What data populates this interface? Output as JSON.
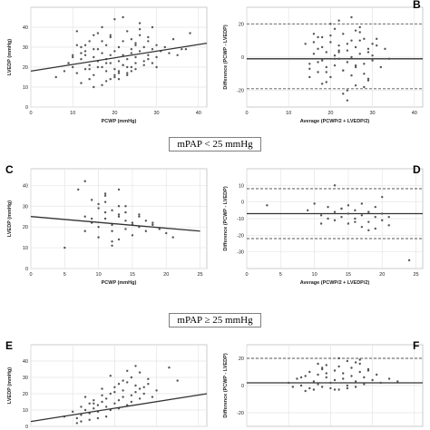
{
  "figure": {
    "section_labels": [
      "mPAP < 25 mmHg",
      "mPAP ≥ 25 mmHg"
    ],
    "panel_letters": [
      "A",
      "B",
      "C",
      "D",
      "E",
      "F"
    ]
  },
  "chart_data": [
    {
      "id": "A",
      "type": "scatter",
      "title": "",
      "xlabel": "PCWP (mmHg)",
      "ylabel": "LVEDP (mmHg)",
      "xlim": [
        0,
        42
      ],
      "ylim": [
        0,
        50
      ],
      "xticks": [
        "0",
        "10",
        "20",
        "30",
        "40"
      ],
      "yticks": [
        "0",
        "10",
        "20",
        "30",
        "40"
      ],
      "fit_line": {
        "x": [
          0,
          42
        ],
        "y": [
          18,
          32
        ]
      },
      "x": [
        6,
        8,
        9,
        10,
        10,
        11,
        12,
        12,
        13,
        13,
        14,
        14,
        15,
        15,
        15,
        16,
        16,
        17,
        17,
        17,
        18,
        18,
        18,
        19,
        19,
        19,
        20,
        20,
        20,
        21,
        21,
        21,
        22,
        22,
        22,
        23,
        23,
        23,
        24,
        24,
        24,
        25,
        25,
        25,
        26,
        26,
        27,
        27,
        28,
        28,
        29,
        29,
        30,
        30,
        31,
        32,
        33,
        34,
        35,
        36,
        12,
        14,
        16,
        18,
        20,
        22,
        24,
        26,
        28,
        30,
        11,
        13,
        15,
        17,
        19,
        21,
        23,
        25,
        27,
        29,
        10,
        12,
        14,
        16,
        18,
        20,
        22,
        24,
        26,
        28,
        15,
        17,
        19,
        21,
        23,
        25,
        9,
        11,
        13,
        38,
        37
      ],
      "y": [
        15,
        18,
        22,
        20,
        26,
        17,
        24,
        30,
        19,
        28,
        21,
        33,
        16,
        25,
        36,
        23,
        29,
        20,
        27,
        40,
        18,
        24,
        31,
        22,
        26,
        35,
        19,
        28,
        44,
        23,
        30,
        17,
        26,
        33,
        21,
        24,
        38,
        20,
        29,
        27,
        34,
        22,
        31,
        25,
        28,
        36,
        23,
        30,
        26,
        33,
        29,
        22,
        31,
        25,
        28,
        30,
        27,
        34,
        26,
        29,
        12,
        14,
        20,
        13,
        16,
        21,
        18,
        42,
        24,
        20,
        38,
        31,
        29,
        33,
        36,
        14,
        17,
        32,
        21,
        40,
        25,
        27,
        19,
        37,
        22,
        15,
        45,
        20,
        39,
        35,
        10,
        11,
        14,
        18,
        16,
        19,
        22,
        31,
        26,
        37,
        29
      ],
      "grid": true
    },
    {
      "id": "B",
      "type": "scatter",
      "title": "",
      "xlabel": "Average (PCWP/2 + LVEDP/2)",
      "ylabel": "Difference (PCWP - LVEDP)",
      "xlim": [
        0,
        42
      ],
      "ylim": [
        -30,
        30
      ],
      "xticks": [
        "0",
        "10",
        "20",
        "30",
        "40"
      ],
      "yticks": [
        "-20",
        "0",
        "20"
      ],
      "reference_lines": {
        "mean": -1,
        "upper": 20,
        "lower": -19
      },
      "x": [
        14,
        15,
        16,
        17,
        17,
        18,
        18,
        19,
        19,
        20,
        20,
        21,
        21,
        22,
        22,
        23,
        23,
        24,
        24,
        25,
        25,
        26,
        26,
        27,
        27,
        28,
        28,
        29,
        29,
        30,
        15,
        16,
        17,
        18,
        19,
        20,
        21,
        22,
        23,
        24,
        25,
        26,
        27,
        28,
        29,
        30,
        31,
        32,
        33,
        34,
        22,
        24,
        26,
        20,
        18,
        16,
        28,
        30,
        25,
        23,
        21,
        19,
        27,
        29,
        31,
        17,
        15,
        24,
        26,
        22
      ],
      "y": [
        8,
        -4,
        2,
        -9,
        5,
        -2,
        12,
        -6,
        3,
        9,
        -12,
        1,
        -5,
        7,
        -1,
        14,
        -8,
        4,
        -3,
        10,
        -11,
        6,
        -6,
        2,
        18,
        -4,
        11,
        -13,
        5,
        1,
        -7,
        9,
        -3,
        6,
        -15,
        13,
        -1,
        4,
        -8,
        8,
        0,
        -5,
        15,
        -10,
        3,
        -2,
        11,
        -6,
        5,
        -1,
        22,
        -20,
        16,
        20,
        -16,
        14,
        -18,
        8,
        24,
        -22,
        17,
        -9,
        10,
        -14,
        7,
        12,
        -12,
        -26,
        -17,
        3
      ],
      "grid": true
    },
    {
      "id": "C",
      "type": "scatter",
      "title": "",
      "xlabel": "PCWP (mmHg)",
      "ylabel": "LVEDP (mmHg)",
      "xlim": [
        0,
        26
      ],
      "ylim": [
        0,
        48
      ],
      "xticks": [
        "0",
        "5",
        "10",
        "15",
        "20",
        "25"
      ],
      "yticks": [
        "0",
        "10",
        "20",
        "30",
        "40"
      ],
      "fit_line": {
        "x": [
          0,
          25
        ],
        "y": [
          25,
          18
        ]
      },
      "x": [
        5,
        7,
        8,
        8,
        9,
        9,
        10,
        10,
        10,
        11,
        11,
        11,
        12,
        12,
        12,
        13,
        13,
        13,
        14,
        14,
        14,
        15,
        15,
        16,
        16,
        17,
        17,
        18,
        19,
        20,
        9,
        10,
        11,
        12,
        13,
        14,
        15,
        8,
        12,
        13,
        16,
        18,
        21,
        11
      ],
      "y": [
        10,
        38,
        25,
        18,
        33,
        22,
        29,
        20,
        15,
        27,
        24,
        32,
        21,
        28,
        18,
        25,
        30,
        14,
        23,
        19,
        27,
        22,
        16,
        20,
        25,
        18,
        23,
        21,
        19,
        17,
        24,
        31,
        35,
        13,
        26,
        30,
        21,
        42,
        11,
        38,
        26,
        22,
        15,
        36
      ],
      "grid": true
    },
    {
      "id": "D",
      "type": "scatter",
      "title": "",
      "xlabel": "Average (PCWP/2 + LVEDP/2)",
      "ylabel": "Difference (PCWP - LVEDP)",
      "xlim": [
        0,
        26
      ],
      "ylim": [
        -40,
        20
      ],
      "xticks": [
        "0",
        "5",
        "10",
        "15",
        "20",
        "25"
      ],
      "yticks": [
        "-30",
        "-20",
        "-10",
        "0",
        "10"
      ],
      "reference_lines": {
        "mean": -7,
        "upper": 8,
        "lower": -22
      },
      "x": [
        3,
        9,
        10,
        11,
        12,
        13,
        13,
        14,
        14,
        15,
        15,
        16,
        16,
        17,
        17,
        18,
        18,
        19,
        19,
        20,
        20,
        21,
        12,
        15,
        17,
        19,
        14,
        16,
        18,
        21,
        11,
        13,
        24,
        20,
        18
      ],
      "y": [
        -2,
        -5,
        -1,
        -8,
        -3,
        -6,
        -11,
        -4,
        -9,
        -7,
        -13,
        -5,
        -10,
        -8,
        -15,
        -6,
        -12,
        -9,
        -3,
        -11,
        -7,
        -14,
        -10,
        -2,
        -1,
        -16,
        -4,
        -12,
        -6,
        -9,
        -13,
        10,
        -35,
        3,
        -17
      ],
      "grid": true
    },
    {
      "id": "E",
      "type": "scatter",
      "title": "",
      "xlabel": "PCWP (mmHg)",
      "ylabel": "LVEDP (mmHg)",
      "xlim": [
        0,
        42
      ],
      "ylim": [
        0,
        50
      ],
      "xticks": [
        "0",
        "10",
        "20",
        "30",
        "40"
      ],
      "yticks": [
        "0",
        "10",
        "20",
        "30",
        "40"
      ],
      "fit_line": {
        "x": [
          0,
          42
        ],
        "y": [
          3,
          20
        ]
      },
      "x": [
        8,
        10,
        11,
        12,
        12,
        13,
        14,
        14,
        15,
        15,
        16,
        16,
        17,
        17,
        18,
        18,
        19,
        19,
        20,
        20,
        21,
        21,
        22,
        22,
        23,
        23,
        24,
        24,
        25,
        25,
        26,
        26,
        27,
        28,
        29,
        30,
        12,
        14,
        16,
        18,
        20,
        22,
        24,
        26,
        28,
        13,
        15,
        17,
        19,
        21,
        23,
        25,
        27,
        11,
        33,
        35
      ],
      "y": [
        6,
        9,
        5,
        12,
        7,
        10,
        8,
        14,
        11,
        16,
        9,
        13,
        15,
        19,
        12,
        17,
        10,
        20,
        14,
        24,
        16,
        11,
        18,
        22,
        13,
        27,
        19,
        15,
        21,
        25,
        17,
        23,
        20,
        26,
        18,
        22,
        3,
        4,
        5,
        6,
        21,
        28,
        30,
        33,
        29,
        18,
        14,
        23,
        31,
        26,
        34,
        37,
        24,
        2,
        36,
        28
      ],
      "grid": true
    },
    {
      "id": "F",
      "type": "scatter",
      "title": "",
      "xlabel": "Average (PCWP/2 + LVEDP/2)",
      "ylabel": "Difference (PCWP - LVEDP)",
      "xlim": [
        0,
        42
      ],
      "ylim": [
        -30,
        30
      ],
      "xticks": [
        "0",
        "10",
        "20",
        "30",
        "40"
      ],
      "yticks": [
        "-20",
        "0",
        "20"
      ],
      "reference_lines": {
        "mean": 2,
        "upper": 20
      },
      "x": [
        10,
        11,
        12,
        13,
        14,
        15,
        15,
        16,
        16,
        17,
        17,
        18,
        18,
        19,
        19,
        20,
        20,
        21,
        21,
        22,
        22,
        23,
        23,
        24,
        24,
        25,
        25,
        26,
        26,
        27,
        27,
        28,
        28,
        29,
        30,
        31,
        32,
        34,
        36,
        14,
        17,
        19,
        22,
        24,
        27,
        29,
        13,
        18,
        21,
        26
      ],
      "y": [
        2,
        -1,
        5,
        0,
        7,
        -2,
        10,
        3,
        -3,
        8,
        1,
        12,
        -1,
        6,
        15,
        2,
        -2,
        11,
        4,
        14,
        -3,
        9,
        5,
        18,
        0,
        7,
        13,
        3,
        -1,
        10,
        16,
        6,
        1,
        12,
        4,
        8,
        2,
        5,
        3,
        -4,
        16,
        9,
        20,
        -2,
        19,
        11,
        6,
        13,
        -3,
        17
      ],
      "grid": true
    }
  ]
}
